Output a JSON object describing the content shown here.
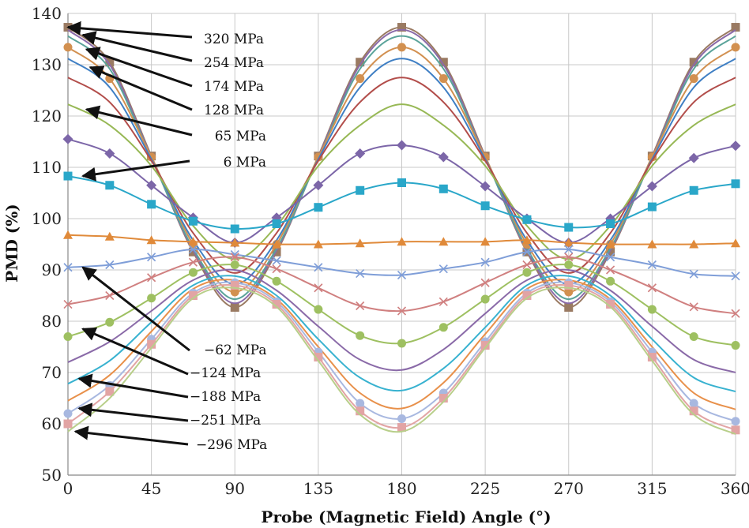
{
  "chart_data": {
    "type": "line",
    "xlabel": "Probe (Magnetic Field) Angle (°)",
    "ylabel": "PMD (%)",
    "xlim": [
      0,
      360
    ],
    "ylim": [
      50,
      140
    ],
    "xticks": [
      0,
      45,
      90,
      135,
      180,
      225,
      270,
      315,
      360
    ],
    "yticks": [
      50,
      60,
      70,
      80,
      90,
      100,
      110,
      120,
      130,
      140
    ],
    "grid": true,
    "x": [
      0,
      22.5,
      45,
      67.5,
      90,
      112.5,
      135,
      157.5,
      180,
      202.5,
      225,
      247.5,
      270,
      292.5,
      315,
      337.5,
      360
    ],
    "series": [
      {
        "name": "320 MPa",
        "color": "#9a7a62",
        "marker": "square",
        "values": [
          137.3,
          130.5,
          112.2,
          93.5,
          82.7,
          93.5,
          112.2,
          130.5,
          137.3,
          130.5,
          112.2,
          93.5,
          82.7,
          93.5,
          112.2,
          130.5,
          137.3
        ]
      },
      {
        "name": "",
        "color": "#8a6aa8",
        "marker": "none",
        "values": [
          136.8,
          130.0,
          112.0,
          93.8,
          83.5,
          93.8,
          112.0,
          130.0,
          136.8,
          130.0,
          112.0,
          93.8,
          83.5,
          93.8,
          112.0,
          130.0,
          136.8
        ]
      },
      {
        "name": "254 MPa",
        "color": "#5aa39a",
        "marker": "none",
        "values": [
          135.6,
          129.2,
          111.8,
          94.2,
          84.3,
          94.2,
          111.8,
          129.2,
          135.6,
          129.2,
          111.8,
          94.2,
          84.3,
          94.2,
          111.8,
          129.2,
          135.6
        ]
      },
      {
        "name": "174 MPa",
        "color": "#d29050",
        "marker": "circle",
        "values": [
          133.4,
          127.3,
          112.0,
          95.0,
          85.7,
          95.0,
          112.0,
          127.3,
          133.4,
          127.3,
          112.0,
          95.0,
          85.7,
          95.0,
          112.0,
          127.3,
          133.4
        ]
      },
      {
        "name": "",
        "color": "#3f7fc4",
        "marker": "none",
        "values": [
          131.2,
          125.6,
          111.6,
          95.8,
          87.2,
          95.8,
          111.6,
          125.6,
          131.2,
          125.6,
          111.6,
          95.8,
          87.2,
          95.8,
          111.6,
          125.6,
          131.2
        ]
      },
      {
        "name": "128 MPa",
        "color": "#b24d4a",
        "marker": "none",
        "values": [
          127.5,
          122.7,
          111.3,
          97.2,
          89.4,
          97.2,
          111.3,
          122.7,
          127.5,
          122.7,
          111.3,
          97.2,
          89.4,
          97.2,
          111.3,
          122.7,
          127.5
        ]
      },
      {
        "name": "65 MPa",
        "color": "#97b855",
        "marker": "none",
        "values": [
          122.3,
          118.2,
          110.3,
          98.6,
          92.1,
          98.6,
          110.3,
          118.2,
          122.3,
          118.2,
          110.3,
          98.6,
          92.1,
          98.6,
          110.3,
          118.2,
          122.3
        ]
      },
      {
        "name": "6 MPa",
        "color": "#7c66a8",
        "marker": "diamond",
        "values": [
          115.5,
          112.7,
          106.5,
          100.2,
          95.3,
          100.2,
          106.5,
          112.7,
          114.3,
          112.0,
          106.3,
          100.0,
          95.3,
          100.0,
          106.3,
          111.8,
          114.2
        ]
      },
      {
        "name": "",
        "color": "#2aa7c9",
        "marker": "square",
        "values": [
          108.3,
          106.5,
          102.8,
          99.5,
          98.0,
          99.0,
          102.2,
          105.5,
          107.0,
          105.8,
          102.5,
          99.8,
          98.3,
          99.0,
          102.3,
          105.5,
          106.8
        ]
      },
      {
        "name": "",
        "color": "#e08a3a",
        "marker": "triangle",
        "values": [
          96.8,
          96.5,
          95.8,
          95.5,
          95.3,
          95.0,
          95.0,
          95.2,
          95.5,
          95.5,
          95.5,
          95.8,
          95.3,
          95.0,
          95.0,
          95.0,
          95.2
        ]
      },
      {
        "name": "−62 MPa",
        "color": "#7f9ed8",
        "marker": "x",
        "values": [
          90.5,
          91.0,
          92.5,
          94.0,
          93.0,
          91.8,
          90.5,
          89.3,
          89.0,
          90.2,
          91.5,
          93.5,
          94.0,
          92.5,
          91.0,
          89.2,
          88.8
        ]
      },
      {
        "name": "",
        "color": "#d08080",
        "marker": "x",
        "values": [
          83.3,
          85.0,
          88.5,
          91.5,
          92.5,
          90.2,
          86.5,
          83.0,
          82.0,
          83.8,
          87.5,
          91.0,
          92.5,
          90.0,
          86.5,
          82.8,
          81.5
        ]
      },
      {
        "name": "−124 MPa",
        "color": "#9ec061",
        "marker": "circle",
        "values": [
          77.0,
          79.8,
          84.5,
          89.5,
          91.0,
          87.8,
          82.3,
          77.2,
          75.7,
          78.8,
          84.3,
          89.5,
          91.0,
          87.8,
          82.3,
          77.0,
          75.3
        ]
      },
      {
        "name": "",
        "color": "#8a6aa8",
        "marker": "none",
        "values": [
          72.0,
          76.0,
          82.0,
          88.0,
          90.0,
          86.0,
          79.0,
          72.5,
          70.5,
          74.5,
          81.5,
          88.0,
          90.0,
          86.0,
          79.0,
          72.5,
          70.0
        ]
      },
      {
        "name": "−188 MPa",
        "color": "#38b2d0",
        "marker": "none",
        "values": [
          67.8,
          72.3,
          79.8,
          87.0,
          88.8,
          85.0,
          76.5,
          69.0,
          66.5,
          70.8,
          78.8,
          87.0,
          88.8,
          85.0,
          76.5,
          69.0,
          66.3
        ]
      },
      {
        "name": "",
        "color": "#e8904a",
        "marker": "none",
        "values": [
          64.5,
          69.5,
          78.0,
          86.3,
          88.0,
          84.3,
          75.0,
          66.0,
          63.0,
          68.0,
          77.5,
          86.3,
          88.0,
          84.3,
          75.0,
          66.0,
          62.8
        ]
      },
      {
        "name": "−251 MPa",
        "color": "#a8b8e0",
        "marker": "circle",
        "values": [
          62.0,
          67.5,
          76.5,
          85.5,
          87.5,
          83.8,
          74.0,
          64.0,
          61.0,
          66.0,
          76.0,
          85.5,
          87.5,
          83.8,
          74.0,
          64.0,
          60.5
        ]
      },
      {
        "name": "",
        "color": "#e2a4a4",
        "marker": "square",
        "values": [
          60.0,
          66.3,
          75.5,
          85.0,
          87.0,
          83.3,
          73.0,
          62.5,
          59.3,
          65.0,
          75.3,
          85.0,
          87.0,
          83.3,
          73.0,
          62.5,
          58.8
        ]
      },
      {
        "name": "−296 MPa",
        "color": "#b8cf8a",
        "marker": "none",
        "values": [
          58.5,
          65.0,
          74.8,
          84.5,
          86.5,
          82.8,
          72.3,
          61.8,
          58.5,
          64.3,
          74.8,
          84.5,
          86.5,
          82.8,
          72.3,
          61.8,
          58.0
        ]
      }
    ],
    "annotations": [
      {
        "label": "320 MPa",
        "target": [
          0,
          137.3
        ],
        "align": "start"
      },
      {
        "label": "254 MPa",
        "target": [
          8,
          135.8
        ],
        "align": "start"
      },
      {
        "label": "174 MPa",
        "target": [
          10,
          133.0
        ],
        "align": "start"
      },
      {
        "label": "128 MPa",
        "target": [
          12,
          129.5
        ],
        "align": "start"
      },
      {
        "label": "65 MPa",
        "target": [
          10,
          121.3
        ],
        "align": "end"
      },
      {
        "label": "6 MPa",
        "target": [
          8,
          108.3
        ],
        "align": "end"
      },
      {
        "label": "−62 MPa",
        "target": [
          8,
          90.5
        ],
        "align": "start"
      },
      {
        "label": "−124 MPa",
        "target": [
          8,
          78.5
        ],
        "align": "start"
      },
      {
        "label": "−188 MPa",
        "target": [
          6,
          68.8
        ],
        "align": "start"
      },
      {
        "label": "−251 MPa",
        "target": [
          6,
          63.0
        ],
        "align": "start"
      },
      {
        "label": "−296 MPa",
        "target": [
          4,
          58.5
        ],
        "align": "start"
      }
    ]
  }
}
